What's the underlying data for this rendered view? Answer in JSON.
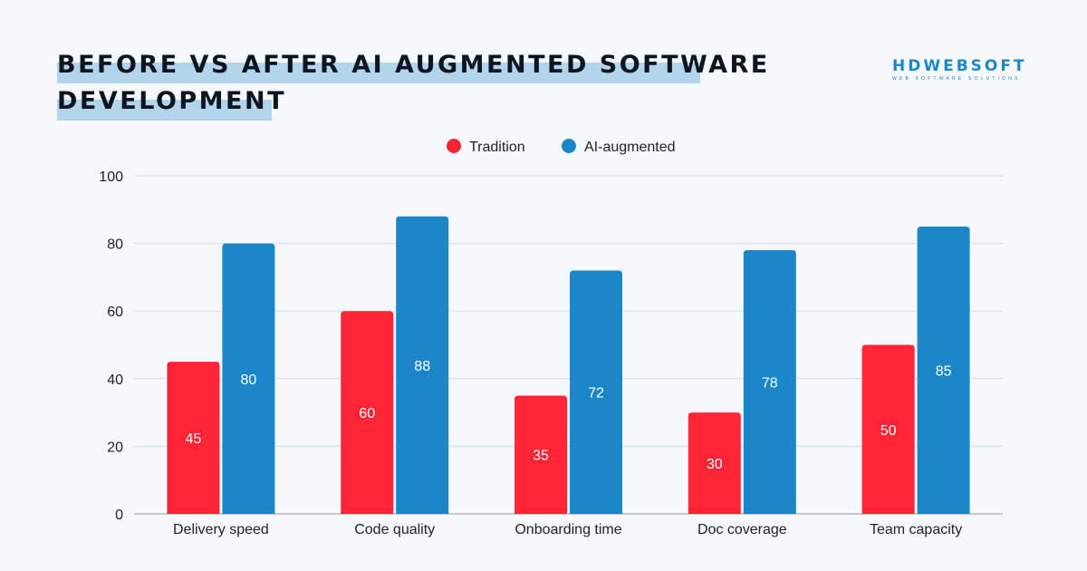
{
  "title_lines": [
    "BEFORE VS AFTER AI AUGMENTED SOFTWARE",
    "DEVELOPMENT"
  ],
  "logo": {
    "name": "HDWEBSOFT",
    "tagline": "WEB SOFTWARE SOLUTIONS"
  },
  "chart_data": {
    "type": "bar",
    "title": "BEFORE VS AFTER AI AUGMENTED SOFTWARE DEVELOPMENT",
    "categories": [
      "Delivery speed",
      "Code quality",
      "Onboarding time",
      "Doc coverage",
      "Team capacity"
    ],
    "series": [
      {
        "name": "Tradition",
        "color": "#ff2536",
        "values": [
          45,
          60,
          35,
          30,
          50
        ]
      },
      {
        "name": "AI-augmented",
        "color": "#1b87c9",
        "values": [
          80,
          88,
          72,
          78,
          85
        ]
      }
    ],
    "ylim": [
      0,
      100
    ],
    "yticks": [
      0,
      20,
      40,
      60,
      80,
      100
    ],
    "grid": true,
    "legend": "top-center",
    "data_labels": true
  }
}
